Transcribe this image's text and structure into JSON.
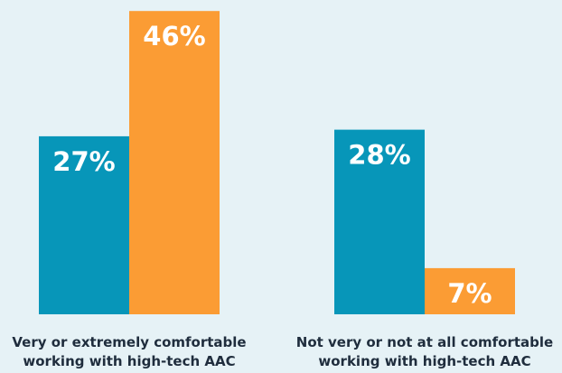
{
  "chart_data": {
    "type": "bar",
    "categories": [
      [
        "Very or extremely comfortable",
        "working with high-tech AAC"
      ],
      [
        "Not very or not at all comfortable",
        "working with high-tech AAC"
      ]
    ],
    "series": [
      {
        "color": "#0796b9",
        "values": [
          27,
          28
        ]
      },
      {
        "color": "#fb9c34",
        "values": [
          46,
          7
        ]
      }
    ],
    "value_labels": [
      [
        "27%",
        "28%"
      ],
      [
        "46%",
        "7%"
      ]
    ],
    "ylim": [
      0,
      50
    ],
    "grid": false,
    "legend": "none"
  }
}
